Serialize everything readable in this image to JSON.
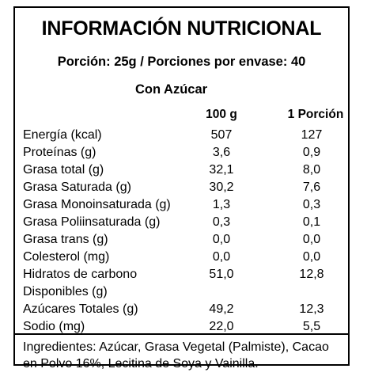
{
  "label": {
    "title": "INFORMACIÓN NUTRICIONAL",
    "serving": "Porción: 25g / Porciones por envase: 40",
    "subtitle": "Con Azúcar",
    "columns": {
      "per100": "100 g",
      "perPortion": "1 Porción"
    },
    "rows": [
      {
        "name": "Energía (kcal)",
        "per100": "507",
        "perPortion": "127"
      },
      {
        "name": "Proteínas (g)",
        "per100": "3,6",
        "perPortion": "0,9"
      },
      {
        "name": "Grasa total (g)",
        "per100": "32,1",
        "perPortion": "8,0"
      },
      {
        "name": "Grasa Saturada (g)",
        "per100": "30,2",
        "perPortion": "7,6"
      },
      {
        "name": "Grasa Monoinsaturada (g)",
        "per100": "1,3",
        "perPortion": "0,3"
      },
      {
        "name": "Grasa Poliinsaturada (g)",
        "per100": "0,3",
        "perPortion": "0,1"
      },
      {
        "name": "Grasa trans (g)",
        "per100": "0,0",
        "perPortion": "0,0"
      },
      {
        "name": "Colesterol (mg)",
        "per100": "0,0",
        "perPortion": "0,0"
      },
      {
        "name": "Hidratos de carbono",
        "per100": "51,0",
        "perPortion": "12,8"
      },
      {
        "name": "Disponibles (g)",
        "per100": "",
        "perPortion": ""
      },
      {
        "name": "Azúcares Totales (g)",
        "per100": "49,2",
        "perPortion": "12,3"
      },
      {
        "name": "Sodio (mg)",
        "per100": "22,0",
        "perPortion": "5,5"
      }
    ],
    "ingredients": "Ingredientes: Azúcar, Grasa Vegetal (Palmiste), Cacao en Polvo 16%, Lecitina de Soya y Vainilla."
  }
}
